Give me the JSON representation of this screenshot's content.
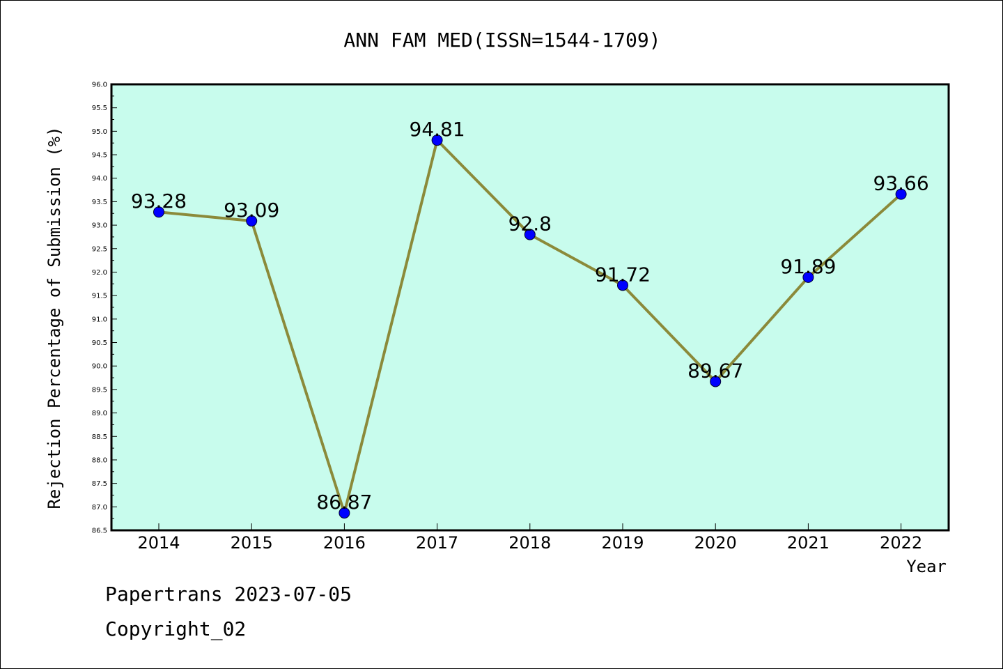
{
  "chart_data": {
    "type": "line",
    "title": "ANN FAM MED(ISSN=1544-1709)",
    "xlabel": "Year",
    "ylabel": "Rejection Percentage of Submission (%)",
    "categories": [
      "2014",
      "2015",
      "2016",
      "2017",
      "2018",
      "2019",
      "2020",
      "2021",
      "2022"
    ],
    "values": [
      93.28,
      93.09,
      86.87,
      94.81,
      92.8,
      91.72,
      89.67,
      91.89,
      93.66
    ],
    "data_labels": [
      "93.28",
      "93.09",
      "86.87",
      "94.81",
      "92.8",
      "91.72",
      "89.67",
      "91.89",
      "93.66"
    ],
    "ylim": [
      86.5,
      96.0
    ],
    "yticks": [
      "86.5",
      "87.0",
      "87.5",
      "88.0",
      "88.5",
      "89.0",
      "89.5",
      "90.0",
      "90.5",
      "91.0",
      "91.5",
      "92.0",
      "92.5",
      "93.0",
      "93.5",
      "94.0",
      "94.5",
      "95.0",
      "95.5",
      "96.0"
    ],
    "grid": false,
    "legend": "none",
    "colors": {
      "plot_background": "#c8fced",
      "line": "#8b8a3a",
      "marker": "#0000ff"
    }
  },
  "footer": {
    "line1": "Papertrans 2023-07-05",
    "line2": "Copyright_02"
  }
}
